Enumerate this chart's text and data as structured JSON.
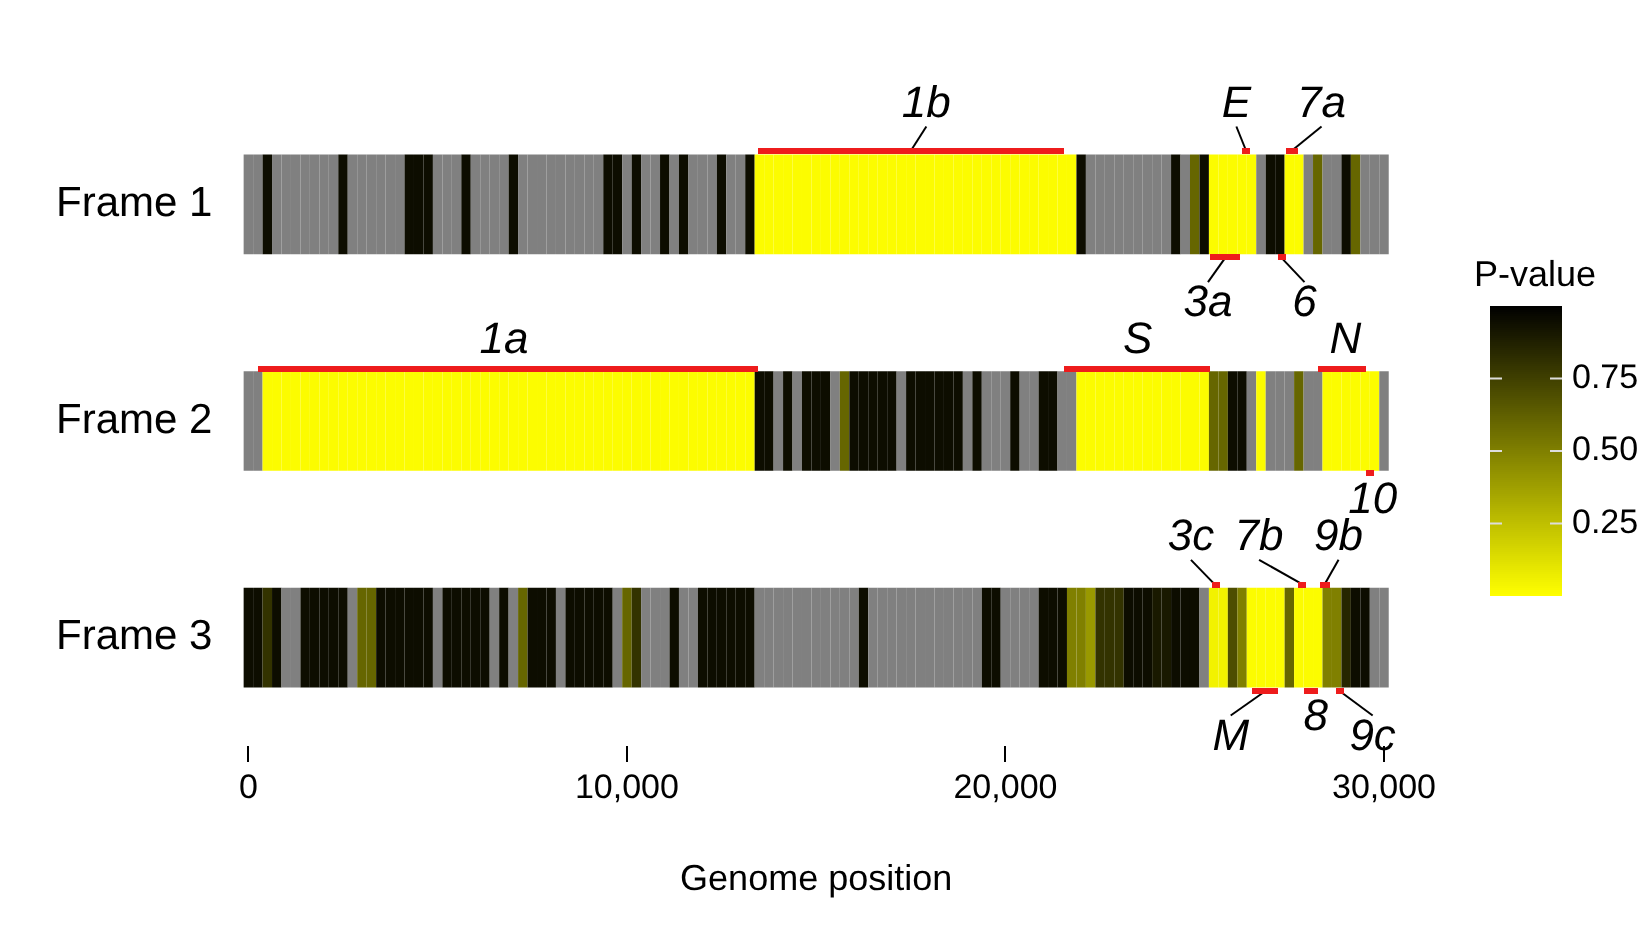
{
  "chart_data": {
    "type": "heatmap",
    "xlabel": "Genome position",
    "clabel": "P-value",
    "categories": [
      "0",
      null,
      null,
      null,
      null,
      null,
      null,
      null,
      null,
      null,
      null,
      null,
      null,
      null,
      null,
      null,
      null,
      null,
      null,
      null,
      null,
      null,
      null,
      null,
      null,
      null,
      null,
      null,
      null,
      null,
      null,
      null,
      null,
      null,
      null,
      null,
      null,
      null,
      null,
      null,
      "10,000",
      null,
      null,
      null,
      null,
      null,
      null,
      null,
      null,
      null,
      null,
      null,
      null,
      null,
      null,
      null,
      null,
      null,
      null,
      null,
      null,
      null,
      null,
      null,
      null,
      null,
      null,
      null,
      null,
      null,
      null,
      null,
      null,
      null,
      null,
      null,
      null,
      null,
      null,
      null,
      "20,000",
      null,
      null,
      null,
      null,
      null,
      null,
      null,
      null,
      null,
      null,
      null,
      null,
      null,
      null,
      null,
      null,
      null,
      null,
      null,
      null,
      null,
      null,
      null,
      null,
      null,
      null,
      null,
      null,
      null,
      null,
      null,
      null,
      null,
      null,
      null,
      null,
      null,
      null,
      null,
      "30,000"
    ],
    "y_categories": [
      "Frame 1",
      "Frame 2",
      "Frame 3"
    ],
    "cells": [
      [
        null,
        null,
        0.95,
        null,
        null,
        null,
        null,
        null,
        null,
        null,
        0.95,
        null,
        null,
        null,
        null,
        null,
        null,
        0.95,
        0.95,
        0.95,
        null,
        null,
        null,
        0.95,
        null,
        null,
        null,
        null,
        0.95,
        null,
        null,
        null,
        null,
        null,
        null,
        null,
        null,
        null,
        0.95,
        0.95,
        null,
        0.95,
        null,
        null,
        0.95,
        null,
        0.95,
        null,
        null,
        null,
        0.95,
        null,
        null,
        0.95,
        0.01,
        0.01,
        0.01,
        0.01,
        0.01,
        0.01,
        0.01,
        0.01,
        0.01,
        0.01,
        0.01,
        0.01,
        0.01,
        0.01,
        0.01,
        0.01,
        0.01,
        0.01,
        0.01,
        0.01,
        0.01,
        0.01,
        0.01,
        0.01,
        0.01,
        0.01,
        0.01,
        0.01,
        0.01,
        0.01,
        0.01,
        0.01,
        0.01,
        0.01,
        0.95,
        null,
        null,
        null,
        null,
        null,
        null,
        null,
        null,
        null,
        0.95,
        null,
        0.6,
        0.95,
        0.01,
        0.01,
        0.01,
        0.01,
        0.01,
        null,
        0.95,
        0.95,
        0.01,
        0.01,
        null,
        0.6,
        null,
        null,
        0.95,
        0.6,
        null,
        null,
        null
      ],
      [
        null,
        null,
        0.01,
        0.01,
        0.01,
        0.01,
        0.01,
        0.01,
        0.01,
        0.01,
        0.01,
        0.01,
        0.01,
        0.01,
        0.01,
        0.01,
        0.01,
        0.01,
        0.01,
        0.01,
        0.01,
        0.01,
        0.01,
        0.01,
        0.01,
        0.01,
        0.01,
        0.01,
        0.01,
        0.01,
        0.01,
        0.01,
        0.01,
        0.01,
        0.01,
        0.01,
        0.01,
        0.01,
        0.01,
        0.01,
        0.01,
        0.01,
        0.01,
        0.01,
        0.01,
        0.01,
        0.01,
        0.01,
        0.01,
        0.01,
        0.01,
        0.01,
        0.01,
        0.01,
        0.95,
        0.95,
        null,
        0.95,
        null,
        0.95,
        0.95,
        0.95,
        null,
        0.6,
        0.95,
        0.95,
        0.95,
        0.95,
        0.95,
        null,
        0.95,
        0.95,
        0.95,
        0.95,
        0.95,
        0.95,
        null,
        0.95,
        null,
        null,
        null,
        0.95,
        null,
        null,
        0.95,
        0.95,
        null,
        null,
        0.01,
        0.01,
        0.01,
        0.01,
        0.01,
        0.01,
        0.01,
        0.01,
        0.01,
        0.01,
        0.01,
        0.01,
        0.01,
        0.01,
        0.6,
        0.6,
        0.95,
        0.95,
        null,
        0.01,
        null,
        null,
        null,
        0.6,
        null,
        null,
        0.01,
        0.01,
        0.01,
        0.01,
        0.01,
        0.01,
        null
      ],
      [
        0.95,
        0.95,
        0.8,
        0.95,
        null,
        null,
        0.95,
        0.95,
        0.95,
        0.95,
        0.95,
        null,
        0.6,
        0.6,
        0.95,
        0.95,
        0.95,
        0.95,
        0.95,
        0.95,
        null,
        0.95,
        0.95,
        0.95,
        0.95,
        0.95,
        null,
        0.95,
        null,
        0.6,
        0.95,
        0.95,
        0.95,
        null,
        0.95,
        0.95,
        0.95,
        0.95,
        0.95,
        null,
        0.6,
        0.8,
        null,
        null,
        null,
        0.95,
        null,
        null,
        0.95,
        0.95,
        0.95,
        0.95,
        0.95,
        0.95,
        null,
        null,
        null,
        null,
        null,
        null,
        null,
        null,
        null,
        null,
        null,
        0.95,
        null,
        null,
        null,
        null,
        null,
        null,
        null,
        null,
        null,
        null,
        null,
        null,
        0.95,
        0.95,
        null,
        null,
        null,
        null,
        0.95,
        0.95,
        0.95,
        0.5,
        0.5,
        0.4,
        0.8,
        0.8,
        0.8,
        0.95,
        0.95,
        0.95,
        0.9,
        0.9,
        0.95,
        0.95,
        0.95,
        null,
        0.05,
        0.05,
        0.7,
        0.5,
        0.01,
        0.01,
        0.01,
        0.01,
        0.6,
        0.01,
        0.01,
        0.01,
        0.5,
        0.5,
        0.85,
        0.95,
        0.95,
        null,
        null
      ]
    ],
    "clim": [
      0,
      1
    ],
    "cticks": [
      {
        "value": 0.25,
        "label": "0.25"
      },
      {
        "value": 0.5,
        "label": "0.50"
      },
      {
        "value": 0.75,
        "label": "0.75"
      }
    ],
    "annotations": [
      "1b",
      "E",
      "7a",
      "3a",
      "6",
      "1a",
      "S",
      "N",
      "10",
      "3c",
      "7b",
      "9b",
      "M",
      "8",
      "9c"
    ]
  }
}
